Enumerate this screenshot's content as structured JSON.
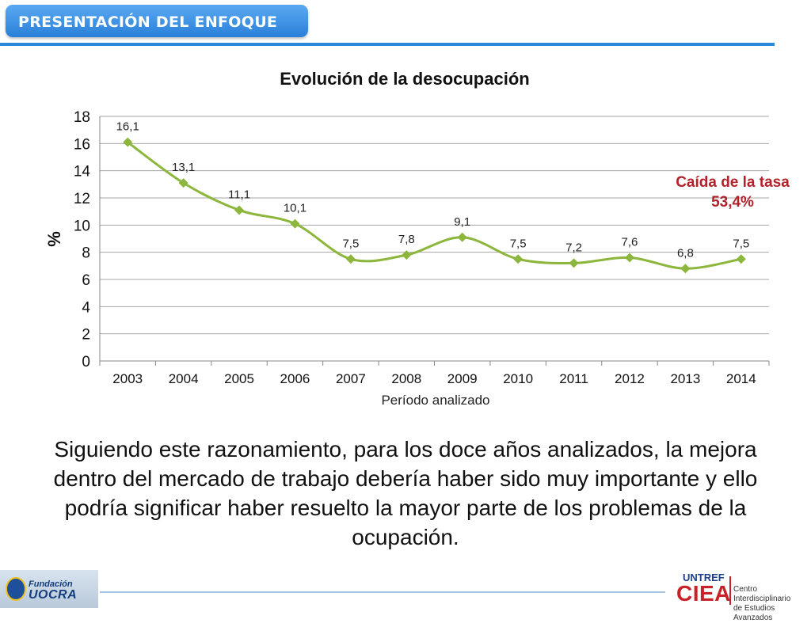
{
  "header": {
    "title": "PRESENTACIÓN DEL ENFOQUE"
  },
  "chart_data": {
    "type": "line",
    "title": "Evolución de la desocupación",
    "xlabel": "Período analizado",
    "ylabel": "%",
    "categories": [
      "2003",
      "2004",
      "2005",
      "2006",
      "2007",
      "2008",
      "2009",
      "2010",
      "2011",
      "2012",
      "2013",
      "2014"
    ],
    "values": [
      16.1,
      13.1,
      11.1,
      10.1,
      7.5,
      7.8,
      9.1,
      7.5,
      7.2,
      7.6,
      6.8,
      7.5
    ],
    "data_labels": [
      "16,1",
      "13,1",
      "11,1",
      "10,1",
      "7,5",
      "7,8",
      "9,1",
      "7,5",
      "7,2",
      "7,6",
      "6,8",
      "7,5"
    ],
    "ylim": [
      0,
      18
    ],
    "yticks": [
      0,
      2,
      4,
      6,
      8,
      10,
      12,
      14,
      16,
      18
    ],
    "grid": true,
    "legend": "none",
    "series_color": "#8db63c",
    "marker": "diamond"
  },
  "annotation": {
    "line1": "Caída de la tasa",
    "line2": "53,4%",
    "color": "#b3212b"
  },
  "body_text": "Siguiendo este razonamiento, para los doce años analizados, la mejora dentro del mercado de trabajo debería haber sido muy importante y ello podría significar haber resuelto la mayor parte de los problemas de la ocupación.",
  "footer": {
    "left_logo": {
      "line1": "Fundación",
      "line2": "UOCRA"
    },
    "right_logo": {
      "name": "UNTREF",
      "acronym": "CIEA",
      "line1": "Centro Interdisciplinario",
      "line2": "de Estudios Avanzados"
    }
  }
}
